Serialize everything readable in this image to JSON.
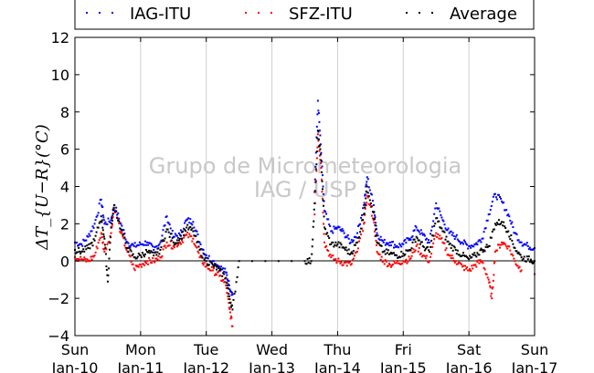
{
  "chart_data": {
    "type": "scatter",
    "ylabel": "ΔT_{U−R}(°C)",
    "ylim": [
      -4,
      12
    ],
    "yticks": [
      -4,
      -2,
      0,
      2,
      4,
      6,
      8,
      10,
      12
    ],
    "x_day_labels": [
      "Sun",
      "Mon",
      "Tue",
      "Wed",
      "Thu",
      "Fri",
      "Sat",
      "Sun"
    ],
    "x_date_labels": [
      "Jan-10",
      "Jan-11",
      "Jan-12",
      "Jan-13",
      "Jan-14",
      "Jan-15",
      "Jan-16",
      "Jan-17"
    ],
    "grid": "vertical",
    "legend_position": "top",
    "watermark": [
      "Grupo de Micrometeorologia",
      "IAG / USP"
    ],
    "series": [
      {
        "name": "IAG-ITU",
        "color": "#0000ff",
        "points": [
          [
            0.0,
            1.0
          ],
          [
            0.1,
            0.9
          ],
          [
            0.2,
            1.3
          ],
          [
            0.3,
            2.0
          ],
          [
            0.4,
            3.3
          ],
          [
            0.45,
            2.0
          ],
          [
            0.55,
            2.2
          ],
          [
            0.6,
            3.0
          ],
          [
            0.7,
            2.0
          ],
          [
            0.8,
            1.0
          ],
          [
            0.9,
            0.8
          ],
          [
            1.0,
            0.9
          ],
          [
            1.1,
            1.0
          ],
          [
            1.2,
            0.6
          ],
          [
            1.3,
            1.0
          ],
          [
            1.4,
            2.4
          ],
          [
            1.5,
            1.3
          ],
          [
            1.6,
            1.4
          ],
          [
            1.7,
            2.2
          ],
          [
            1.8,
            2.1
          ],
          [
            1.9,
            1.0
          ],
          [
            2.0,
            0.3
          ],
          [
            2.1,
            0.0
          ],
          [
            2.2,
            -0.3
          ],
          [
            2.3,
            -0.6
          ],
          [
            2.35,
            -1.3
          ],
          [
            2.4,
            -1.8
          ],
          [
            3.65,
            3.7
          ],
          [
            3.7,
            8.6
          ],
          [
            3.75,
            5.8
          ],
          [
            3.8,
            2.7
          ],
          [
            3.9,
            1.6
          ],
          [
            4.0,
            1.8
          ],
          [
            4.1,
            1.5
          ],
          [
            4.2,
            1.0
          ],
          [
            4.3,
            1.5
          ],
          [
            4.4,
            3.0
          ],
          [
            4.45,
            4.5
          ],
          [
            4.55,
            3.0
          ],
          [
            4.6,
            1.5
          ],
          [
            4.7,
            1.0
          ],
          [
            4.8,
            1.0
          ],
          [
            4.9,
            0.8
          ],
          [
            5.0,
            0.9
          ],
          [
            5.1,
            1.2
          ],
          [
            5.2,
            1.8
          ],
          [
            5.3,
            1.4
          ],
          [
            5.4,
            1.0
          ],
          [
            5.5,
            3.1
          ],
          [
            5.6,
            2.2
          ],
          [
            5.7,
            1.5
          ],
          [
            5.8,
            1.3
          ],
          [
            5.9,
            1.0
          ],
          [
            6.0,
            0.8
          ],
          [
            6.1,
            0.9
          ],
          [
            6.2,
            1.2
          ],
          [
            6.3,
            2.5
          ],
          [
            6.4,
            3.6
          ],
          [
            6.5,
            3.2
          ],
          [
            6.6,
            2.5
          ],
          [
            6.7,
            1.5
          ],
          [
            6.8,
            1.0
          ],
          [
            6.9,
            0.8
          ],
          [
            7.0,
            0.7
          ]
        ]
      },
      {
        "name": "SFZ-ITU",
        "color": "#ff0000",
        "points": [
          [
            0.0,
            0.2
          ],
          [
            0.1,
            0.1
          ],
          [
            0.2,
            0.0
          ],
          [
            0.3,
            0.3
          ],
          [
            0.4,
            1.5
          ],
          [
            0.45,
            0.5
          ],
          [
            0.55,
            1.5
          ],
          [
            0.6,
            3.0
          ],
          [
            0.7,
            1.5
          ],
          [
            0.8,
            0.5
          ],
          [
            0.9,
            -0.4
          ],
          [
            1.0,
            -0.2
          ],
          [
            1.1,
            0.0
          ],
          [
            1.2,
            0.0
          ],
          [
            1.3,
            0.2
          ],
          [
            1.4,
            1.0
          ],
          [
            1.5,
            0.8
          ],
          [
            1.6,
            1.0
          ],
          [
            1.7,
            1.4
          ],
          [
            1.8,
            1.2
          ],
          [
            1.9,
            0.2
          ],
          [
            2.0,
            -0.3
          ],
          [
            2.1,
            -0.5
          ],
          [
            2.2,
            -0.8
          ],
          [
            2.3,
            -1.3
          ],
          [
            2.35,
            -2.5
          ],
          [
            2.4,
            -3.5
          ],
          [
            3.65,
            2.5
          ],
          [
            3.7,
            6.8
          ],
          [
            3.75,
            5.0
          ],
          [
            3.8,
            1.0
          ],
          [
            3.9,
            0.2
          ],
          [
            4.0,
            0.0
          ],
          [
            4.1,
            -0.1
          ],
          [
            4.2,
            -0.2
          ],
          [
            4.3,
            0.5
          ],
          [
            4.4,
            2.0
          ],
          [
            4.45,
            3.5
          ],
          [
            4.55,
            2.2
          ],
          [
            4.6,
            0.5
          ],
          [
            4.7,
            0.0
          ],
          [
            4.8,
            -0.2
          ],
          [
            4.9,
            -0.1
          ],
          [
            5.0,
            0.0
          ],
          [
            5.1,
            0.1
          ],
          [
            5.2,
            0.8
          ],
          [
            5.3,
            0.3
          ],
          [
            5.4,
            0.0
          ],
          [
            5.5,
            1.5
          ],
          [
            5.6,
            1.0
          ],
          [
            5.7,
            0.3
          ],
          [
            5.8,
            0.0
          ],
          [
            5.9,
            -0.3
          ],
          [
            6.0,
            -0.5
          ],
          [
            6.1,
            -0.2
          ],
          [
            6.2,
            0.0
          ],
          [
            6.3,
            -1.0
          ],
          [
            6.35,
            -2.0
          ],
          [
            6.4,
            0.5
          ],
          [
            6.5,
            1.0
          ],
          [
            6.6,
            0.8
          ],
          [
            6.7,
            0.0
          ],
          [
            6.8,
            -0.5
          ],
          [
            7.0,
            -0.7
          ]
        ]
      },
      {
        "name": "Average",
        "color": "#000000",
        "points": [
          [
            0.0,
            0.6
          ],
          [
            0.1,
            0.5
          ],
          [
            0.2,
            0.7
          ],
          [
            0.3,
            1.1
          ],
          [
            0.4,
            2.4
          ],
          [
            0.45,
            1.2
          ],
          [
            0.5,
            -1.1
          ],
          [
            0.55,
            1.8
          ],
          [
            0.6,
            3.0
          ],
          [
            0.7,
            1.7
          ],
          [
            0.8,
            0.7
          ],
          [
            0.9,
            0.2
          ],
          [
            1.0,
            0.3
          ],
          [
            1.1,
            0.5
          ],
          [
            1.2,
            0.3
          ],
          [
            1.3,
            0.6
          ],
          [
            1.4,
            1.7
          ],
          [
            1.5,
            1.0
          ],
          [
            1.6,
            1.2
          ],
          [
            1.7,
            1.8
          ],
          [
            1.8,
            1.6
          ],
          [
            1.9,
            0.6
          ],
          [
            2.0,
            0.0
          ],
          [
            2.1,
            -0.2
          ],
          [
            2.2,
            -0.5
          ],
          [
            2.3,
            -0.9
          ],
          [
            2.35,
            -1.9
          ],
          [
            2.4,
            -2.6
          ],
          [
            2.5,
            0.0
          ],
          [
            2.7,
            0.0
          ],
          [
            2.9,
            0.0
          ],
          [
            3.1,
            0.0
          ],
          [
            3.3,
            0.0
          ],
          [
            3.5,
            0.0
          ],
          [
            3.6,
            0.0
          ],
          [
            3.65,
            3.1
          ],
          [
            3.7,
            7.0
          ],
          [
            3.75,
            5.4
          ],
          [
            3.8,
            1.8
          ],
          [
            3.9,
            0.9
          ],
          [
            4.0,
            0.9
          ],
          [
            4.1,
            0.7
          ],
          [
            4.2,
            0.4
          ],
          [
            4.3,
            1.0
          ],
          [
            4.4,
            2.5
          ],
          [
            4.45,
            4.0
          ],
          [
            4.55,
            2.6
          ],
          [
            4.6,
            1.0
          ],
          [
            4.7,
            0.5
          ],
          [
            4.8,
            0.4
          ],
          [
            4.9,
            0.3
          ],
          [
            5.0,
            0.4
          ],
          [
            5.1,
            0.6
          ],
          [
            5.2,
            1.3
          ],
          [
            5.3,
            0.8
          ],
          [
            5.4,
            0.5
          ],
          [
            5.5,
            2.3
          ],
          [
            5.6,
            1.6
          ],
          [
            5.7,
            0.9
          ],
          [
            5.8,
            0.6
          ],
          [
            5.9,
            0.3
          ],
          [
            6.0,
            0.1
          ],
          [
            6.1,
            0.3
          ],
          [
            6.2,
            0.6
          ],
          [
            6.3,
            0.8
          ],
          [
            6.4,
            2.0
          ],
          [
            6.5,
            2.1
          ],
          [
            6.6,
            1.6
          ],
          [
            6.7,
            0.7
          ],
          [
            6.8,
            0.2
          ],
          [
            6.9,
            0.1
          ],
          [
            7.0,
            0.0
          ]
        ]
      }
    ]
  }
}
